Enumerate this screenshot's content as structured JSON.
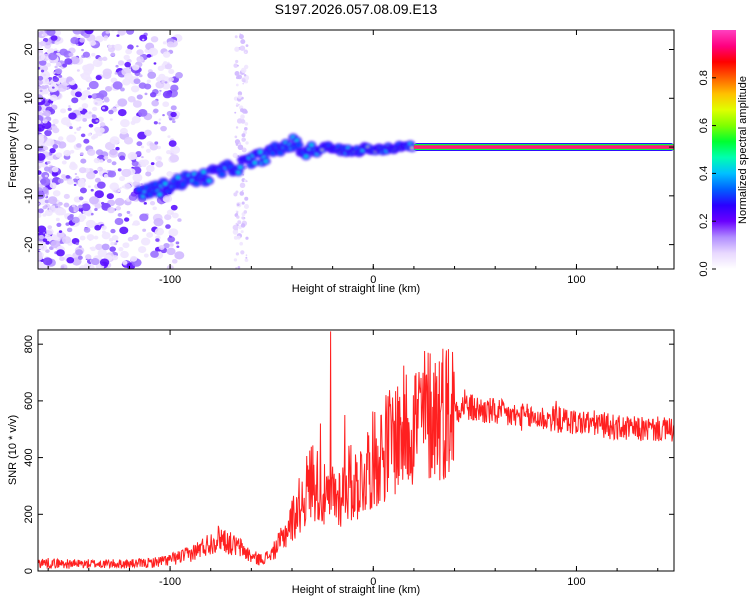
{
  "title": "S197.2026.057.08.09.E13",
  "chart_data": [
    {
      "type": "heatmap",
      "name": "spectrogram",
      "xlabel": "Height of straight line (km)",
      "ylabel": "Frequency (Hz)",
      "xlim": [
        -165,
        148
      ],
      "ylim": [
        -25,
        24
      ],
      "xticks": [
        -100,
        0,
        100
      ],
      "xtick_labels": [
        "-100",
        "0",
        "100"
      ],
      "yticks": [
        -20,
        -10,
        0,
        10,
        20
      ],
      "ytick_labels": [
        "-20",
        "-10",
        "0",
        "10",
        "20"
      ],
      "ridge_x": [
        -115,
        -105,
        -95,
        -88,
        -82,
        -76,
        -70,
        -64,
        -58,
        -52,
        -46,
        -40,
        -34,
        -28,
        -22,
        -16,
        -10,
        -4,
        2,
        8,
        14,
        20,
        148
      ],
      "ridge_y": [
        -9.5,
        -8.5,
        -7,
        -6.5,
        -6,
        -5,
        -4.5,
        -3.5,
        -2.5,
        -1.5,
        -0.5,
        1,
        -1,
        -0.8,
        0,
        -0.5,
        -1,
        -0.3,
        -0.5,
        -0.2,
        0,
        0,
        0
      ],
      "strong_line": {
        "x_start": 20,
        "x_end": 148,
        "y": 0
      },
      "colorbar": {
        "label": "Normalized spectral amplitude",
        "range": [
          0,
          1
        ],
        "ticks": [
          0.0,
          0.2,
          0.4,
          0.6,
          0.8
        ],
        "tick_labels": [
          "0.0",
          "0.2",
          "0.4",
          "0.6",
          "0.8"
        ],
        "colors": [
          "#ffffff",
          "#e8d8ff",
          "#b08cff",
          "#6a00ff",
          "#2a00ff",
          "#0060ff",
          "#00c0ff",
          "#00ffb0",
          "#00ff30",
          "#80ff00",
          "#e0ff00",
          "#ffc000",
          "#ff6000",
          "#ff0000",
          "#ff0080",
          "#ff40c0"
        ]
      }
    },
    {
      "type": "line",
      "name": "snr",
      "xlabel": "Height of straight line (km)",
      "ylabel": "SNR (10 * v/v)",
      "xlim": [
        -165,
        148
      ],
      "ylim": [
        0,
        850
      ],
      "xticks": [
        -100,
        0,
        100
      ],
      "xtick_labels": [
        "-100",
        "0",
        "100"
      ],
      "yticks": [
        0,
        200,
        400,
        600,
        800
      ],
      "ytick_labels": [
        "0",
        "200",
        "400",
        "600",
        "800"
      ],
      "color": "#ff2020",
      "series": [
        {
          "name": "SNR",
          "x": [
            -165,
            -150,
            -135,
            -120,
            -110,
            -100,
            -90,
            -85,
            -80,
            -75,
            -70,
            -65,
            -60,
            -55,
            -50,
            -45,
            -40,
            -35,
            -30,
            -27,
            -24,
            -22,
            -20,
            -18,
            -15,
            -12,
            -10,
            -8,
            -5,
            -2,
            0,
            5,
            10,
            15,
            20,
            25,
            30,
            35,
            40,
            45,
            50,
            60,
            70,
            80,
            90,
            100,
            110,
            120,
            130,
            140,
            148
          ],
          "y": [
            30,
            25,
            25,
            25,
            28,
            40,
            60,
            80,
            100,
            120,
            95,
            80,
            50,
            40,
            60,
            110,
            180,
            250,
            330,
            300,
            260,
            240,
            280,
            260,
            280,
            320,
            300,
            310,
            330,
            380,
            390,
            430,
            470,
            500,
            530,
            550,
            560,
            570,
            575,
            580,
            570,
            560,
            545,
            540,
            535,
            525,
            520,
            505,
            500,
            500,
            495
          ]
        }
      ],
      "peaks": [
        {
          "x": -21,
          "y": 845
        },
        {
          "x": -26,
          "y": 520
        },
        {
          "x": -14,
          "y": 550
        },
        {
          "x": 45,
          "y": 640
        },
        {
          "x": 90,
          "y": 600
        }
      ]
    }
  ]
}
